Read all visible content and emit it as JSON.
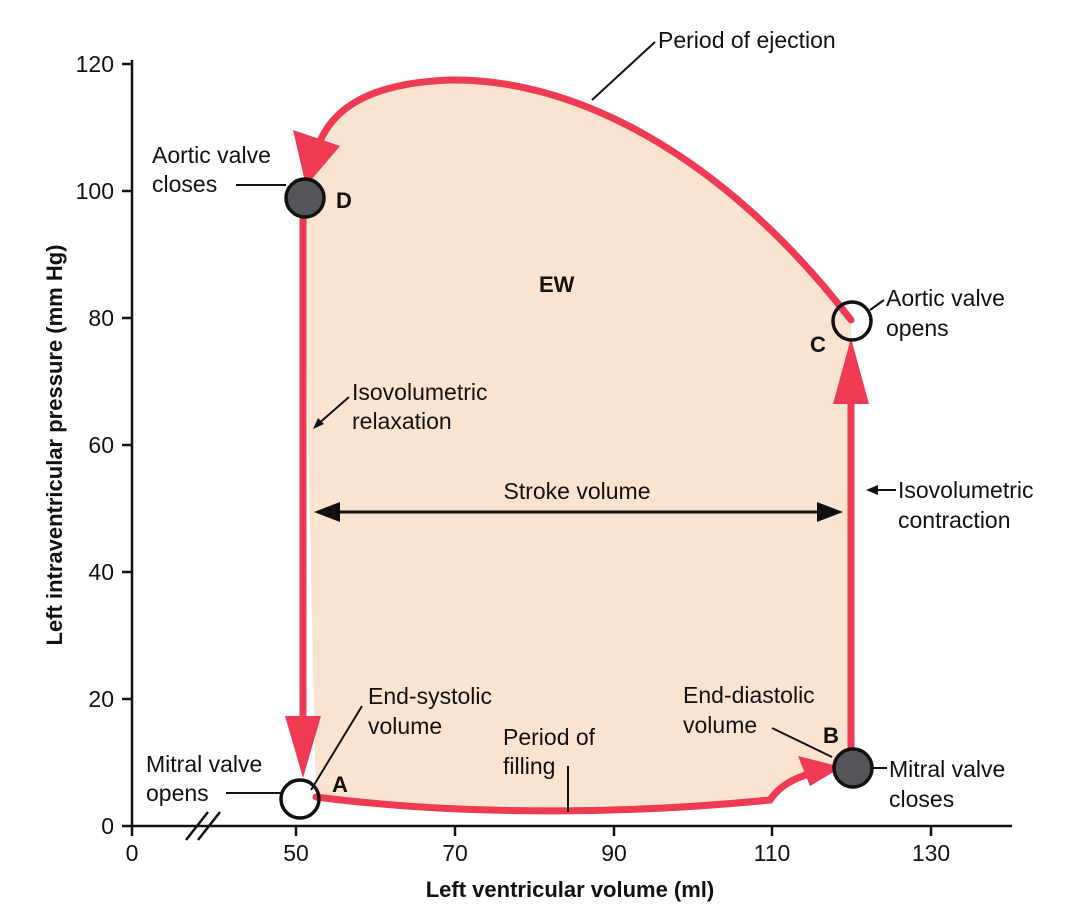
{
  "colors": {
    "loop_fill": "#fbe3d2",
    "loop_stroke": "#ee3a52",
    "closed_point": "#555559",
    "open_point_fill": "#ffffff",
    "ink": "#111111"
  },
  "axes": {
    "x_title": "Left ventricular volume (ml)",
    "y_title": "Left intraventricular pressure (mm Hg)",
    "x_ticks": [
      "0",
      "50",
      "70",
      "90",
      "110",
      "130"
    ],
    "y_ticks": [
      "0",
      "20",
      "40",
      "60",
      "80",
      "100",
      "120"
    ]
  },
  "points": {
    "a": "A",
    "b": "B",
    "c": "C",
    "d": "D"
  },
  "labels": {
    "period_of_ejection": "Period of ejection",
    "aortic_closes_1": "Aortic valve",
    "aortic_closes_2": "closes",
    "ew": "EW",
    "aortic_opens_1": "Aortic valve",
    "aortic_opens_2": "opens",
    "iso_relax_1": "Isovolumetric",
    "iso_relax_2": "relaxation",
    "stroke_volume": "Stroke volume",
    "iso_contract_1": "Isovolumetric",
    "iso_contract_2": "contraction",
    "end_systolic_1": "End-systolic",
    "end_systolic_2": "volume",
    "end_diastolic_1": "End-diastolic",
    "end_diastolic_2": "volume",
    "period_filling_1": "Period of",
    "period_filling_2": "filling",
    "mitral_opens_1": "Mitral valve",
    "mitral_opens_2": "opens",
    "mitral_closes_1": "Mitral valve",
    "mitral_closes_2": "closes"
  }
}
